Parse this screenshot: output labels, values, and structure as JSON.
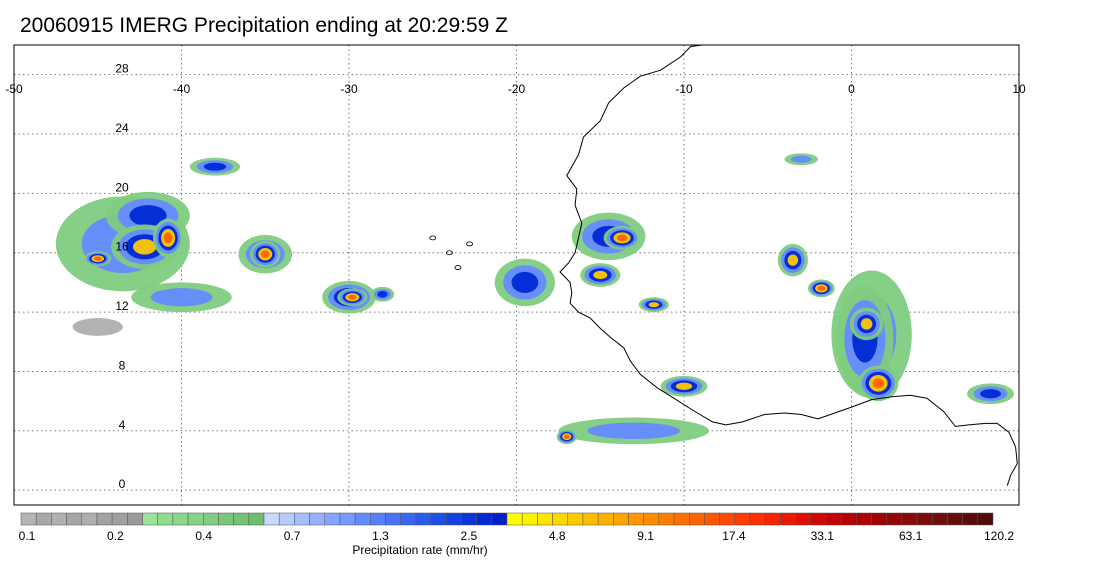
{
  "title": "20060915 IMERG Precipitation ending at 20:29:59 Z",
  "map": {
    "lon_range": [
      -50,
      10
    ],
    "lat_range": [
      -1,
      30
    ],
    "lon_ticks": [
      "-50",
      "-40",
      "-30",
      "-20",
      "-10",
      "0",
      "10"
    ],
    "lat_ticks": [
      "28",
      "24",
      "20",
      "16",
      "12",
      "8",
      "4",
      "0"
    ],
    "grid": true,
    "coastline_color": "#000000"
  },
  "colorbar": {
    "title": "Precipitation rate (mm/hr)",
    "labels": [
      "0.1",
      "0.2",
      "0.4",
      "0.7",
      "1.3",
      "2.5",
      "4.8",
      "9.1",
      "17.4",
      "33.1",
      "63.1",
      "120.2"
    ],
    "colors": [
      "#b4b4b4",
      "#a8a8a8",
      "#b0b0b0",
      "#a6a6a6",
      "#aeaeae",
      "#a2a2a2",
      "#a0a0a0",
      "#9a9a9a",
      "#9be39b",
      "#8fdc8f",
      "#8bd78b",
      "#86d286",
      "#80cc80",
      "#7ac77a",
      "#74c274",
      "#6ebd6e",
      "#c8d8ff",
      "#b7cbff",
      "#a6bdff",
      "#95b0ff",
      "#86a4ff",
      "#7698ff",
      "#668bff",
      "#577ffc",
      "#4873f7",
      "#3966f2",
      "#2b5aec",
      "#1f4de6",
      "#1441e0",
      "#0a35da",
      "#0029d4",
      "#001fcb",
      "#ffff00",
      "#fff000",
      "#ffe400",
      "#ffd700",
      "#ffca00",
      "#ffbd00",
      "#ffb000",
      "#ffa300",
      "#ff9600",
      "#ff8a00",
      "#ff7d00",
      "#ff7000",
      "#ff6300",
      "#ff5600",
      "#ff4900",
      "#ff3c00",
      "#ff2f00",
      "#f42400",
      "#e81a00",
      "#dd1000",
      "#d10700",
      "#c50000",
      "#b90000",
      "#ad0000",
      "#a10000",
      "#940505",
      "#870a0a",
      "#7b0c0c",
      "#700d0d",
      "#650d0d",
      "#5a0c0c",
      "#500b0b"
    ]
  },
  "precip_cells": [
    {
      "lon": -43.5,
      "lat": 16.6,
      "rx": 4.0,
      "ry": 3.2,
      "level": 1,
      "label": "hurricane-outer"
    },
    {
      "lon": -42.0,
      "lat": 18.5,
      "rx": 2.5,
      "ry": 1.6,
      "level": 2,
      "label": "hurricane-band"
    },
    {
      "lon": -42.2,
      "lat": 16.4,
      "rx": 2.0,
      "ry": 1.5,
      "level": 3,
      "label": "hurricane-core"
    },
    {
      "lon": -40.8,
      "lat": 17.0,
      "rx": 0.9,
      "ry": 1.3,
      "level": 4,
      "label": "hurricane-eyewall"
    },
    {
      "lon": -45.0,
      "lat": 15.6,
      "rx": 0.8,
      "ry": 0.5,
      "level": 4,
      "label": "hurricane-tail"
    },
    {
      "lon": -38.0,
      "lat": 21.8,
      "rx": 1.5,
      "ry": 0.6,
      "level": 2,
      "label": "north-band"
    },
    {
      "lon": -35.0,
      "lat": 15.9,
      "rx": 1.6,
      "ry": 1.3,
      "level": 2,
      "label": "east-cell"
    },
    {
      "lon": -35.0,
      "lat": 15.9,
      "rx": 0.9,
      "ry": 0.9,
      "level": 4,
      "label": "east-cell-core"
    },
    {
      "lon": -30.0,
      "lat": 13.0,
      "rx": 1.6,
      "ry": 1.1,
      "level": 3,
      "label": "mid-atlantic-cell"
    },
    {
      "lon": -29.8,
      "lat": 13.0,
      "rx": 0.9,
      "ry": 0.6,
      "level": 4,
      "label": "mid-atlantic-core"
    },
    {
      "lon": -28.0,
      "lat": 13.2,
      "rx": 0.7,
      "ry": 0.5,
      "level": 2,
      "label": "small-cell"
    },
    {
      "lon": -19.5,
      "lat": 14.0,
      "rx": 1.8,
      "ry": 1.6,
      "level": 2,
      "label": "senegal-offshore"
    },
    {
      "lon": -14.5,
      "lat": 17.1,
      "rx": 2.2,
      "ry": 1.6,
      "level": 2,
      "label": "mauritania-cell"
    },
    {
      "lon": -13.7,
      "lat": 17.0,
      "rx": 1.1,
      "ry": 0.8,
      "level": 4,
      "label": "mauritania-core"
    },
    {
      "lon": -15.0,
      "lat": 14.5,
      "rx": 1.2,
      "ry": 0.8,
      "level": 3,
      "label": "senegal-core"
    },
    {
      "lon": -11.8,
      "lat": 12.5,
      "rx": 0.9,
      "ry": 0.5,
      "level": 3,
      "label": "guinea-cell"
    },
    {
      "lon": -10.0,
      "lat": 7.0,
      "rx": 1.4,
      "ry": 0.7,
      "level": 3,
      "label": "liberia-cell"
    },
    {
      "lon": -13.0,
      "lat": 4.0,
      "rx": 4.5,
      "ry": 0.9,
      "level": 1,
      "label": "guinea-coast-band"
    },
    {
      "lon": -17.0,
      "lat": 3.6,
      "rx": 0.6,
      "ry": 0.5,
      "level": 4,
      "label": "coast-core"
    },
    {
      "lon": 1.2,
      "lat": 10.5,
      "rx": 2.4,
      "ry": 4.3,
      "level": 1,
      "label": "ghana-system"
    },
    {
      "lon": 0.8,
      "lat": 10.2,
      "rx": 1.7,
      "ry": 3.6,
      "level": 2,
      "label": "ghana-band"
    },
    {
      "lon": 1.6,
      "lat": 7.2,
      "rx": 1.2,
      "ry": 1.2,
      "level": 4,
      "label": "ghana-core-south"
    },
    {
      "lon": 0.9,
      "lat": 11.2,
      "rx": 1.0,
      "ry": 1.1,
      "level": 3,
      "label": "ghana-core-north"
    },
    {
      "lon": -3.5,
      "lat": 15.5,
      "rx": 0.9,
      "ry": 1.1,
      "level": 3,
      "label": "mali-cell"
    },
    {
      "lon": -1.8,
      "lat": 13.6,
      "rx": 0.8,
      "ry": 0.6,
      "level": 4,
      "label": "burkina-core"
    },
    {
      "lon": -3.0,
      "lat": 22.3,
      "rx": 1.0,
      "ry": 0.4,
      "level": 1,
      "label": "sahara-cell"
    },
    {
      "lon": 8.3,
      "lat": 6.5,
      "rx": 1.4,
      "ry": 0.7,
      "level": 2,
      "label": "nigeria-cell"
    },
    {
      "lon": -40.0,
      "lat": 13.0,
      "rx": 3.0,
      "ry": 1.0,
      "level": 1,
      "label": "south-fragments"
    },
    {
      "lon": -45.0,
      "lat": 11.0,
      "rx": 1.5,
      "ry": 0.6,
      "level": 0,
      "label": "grey-fragments"
    }
  ]
}
